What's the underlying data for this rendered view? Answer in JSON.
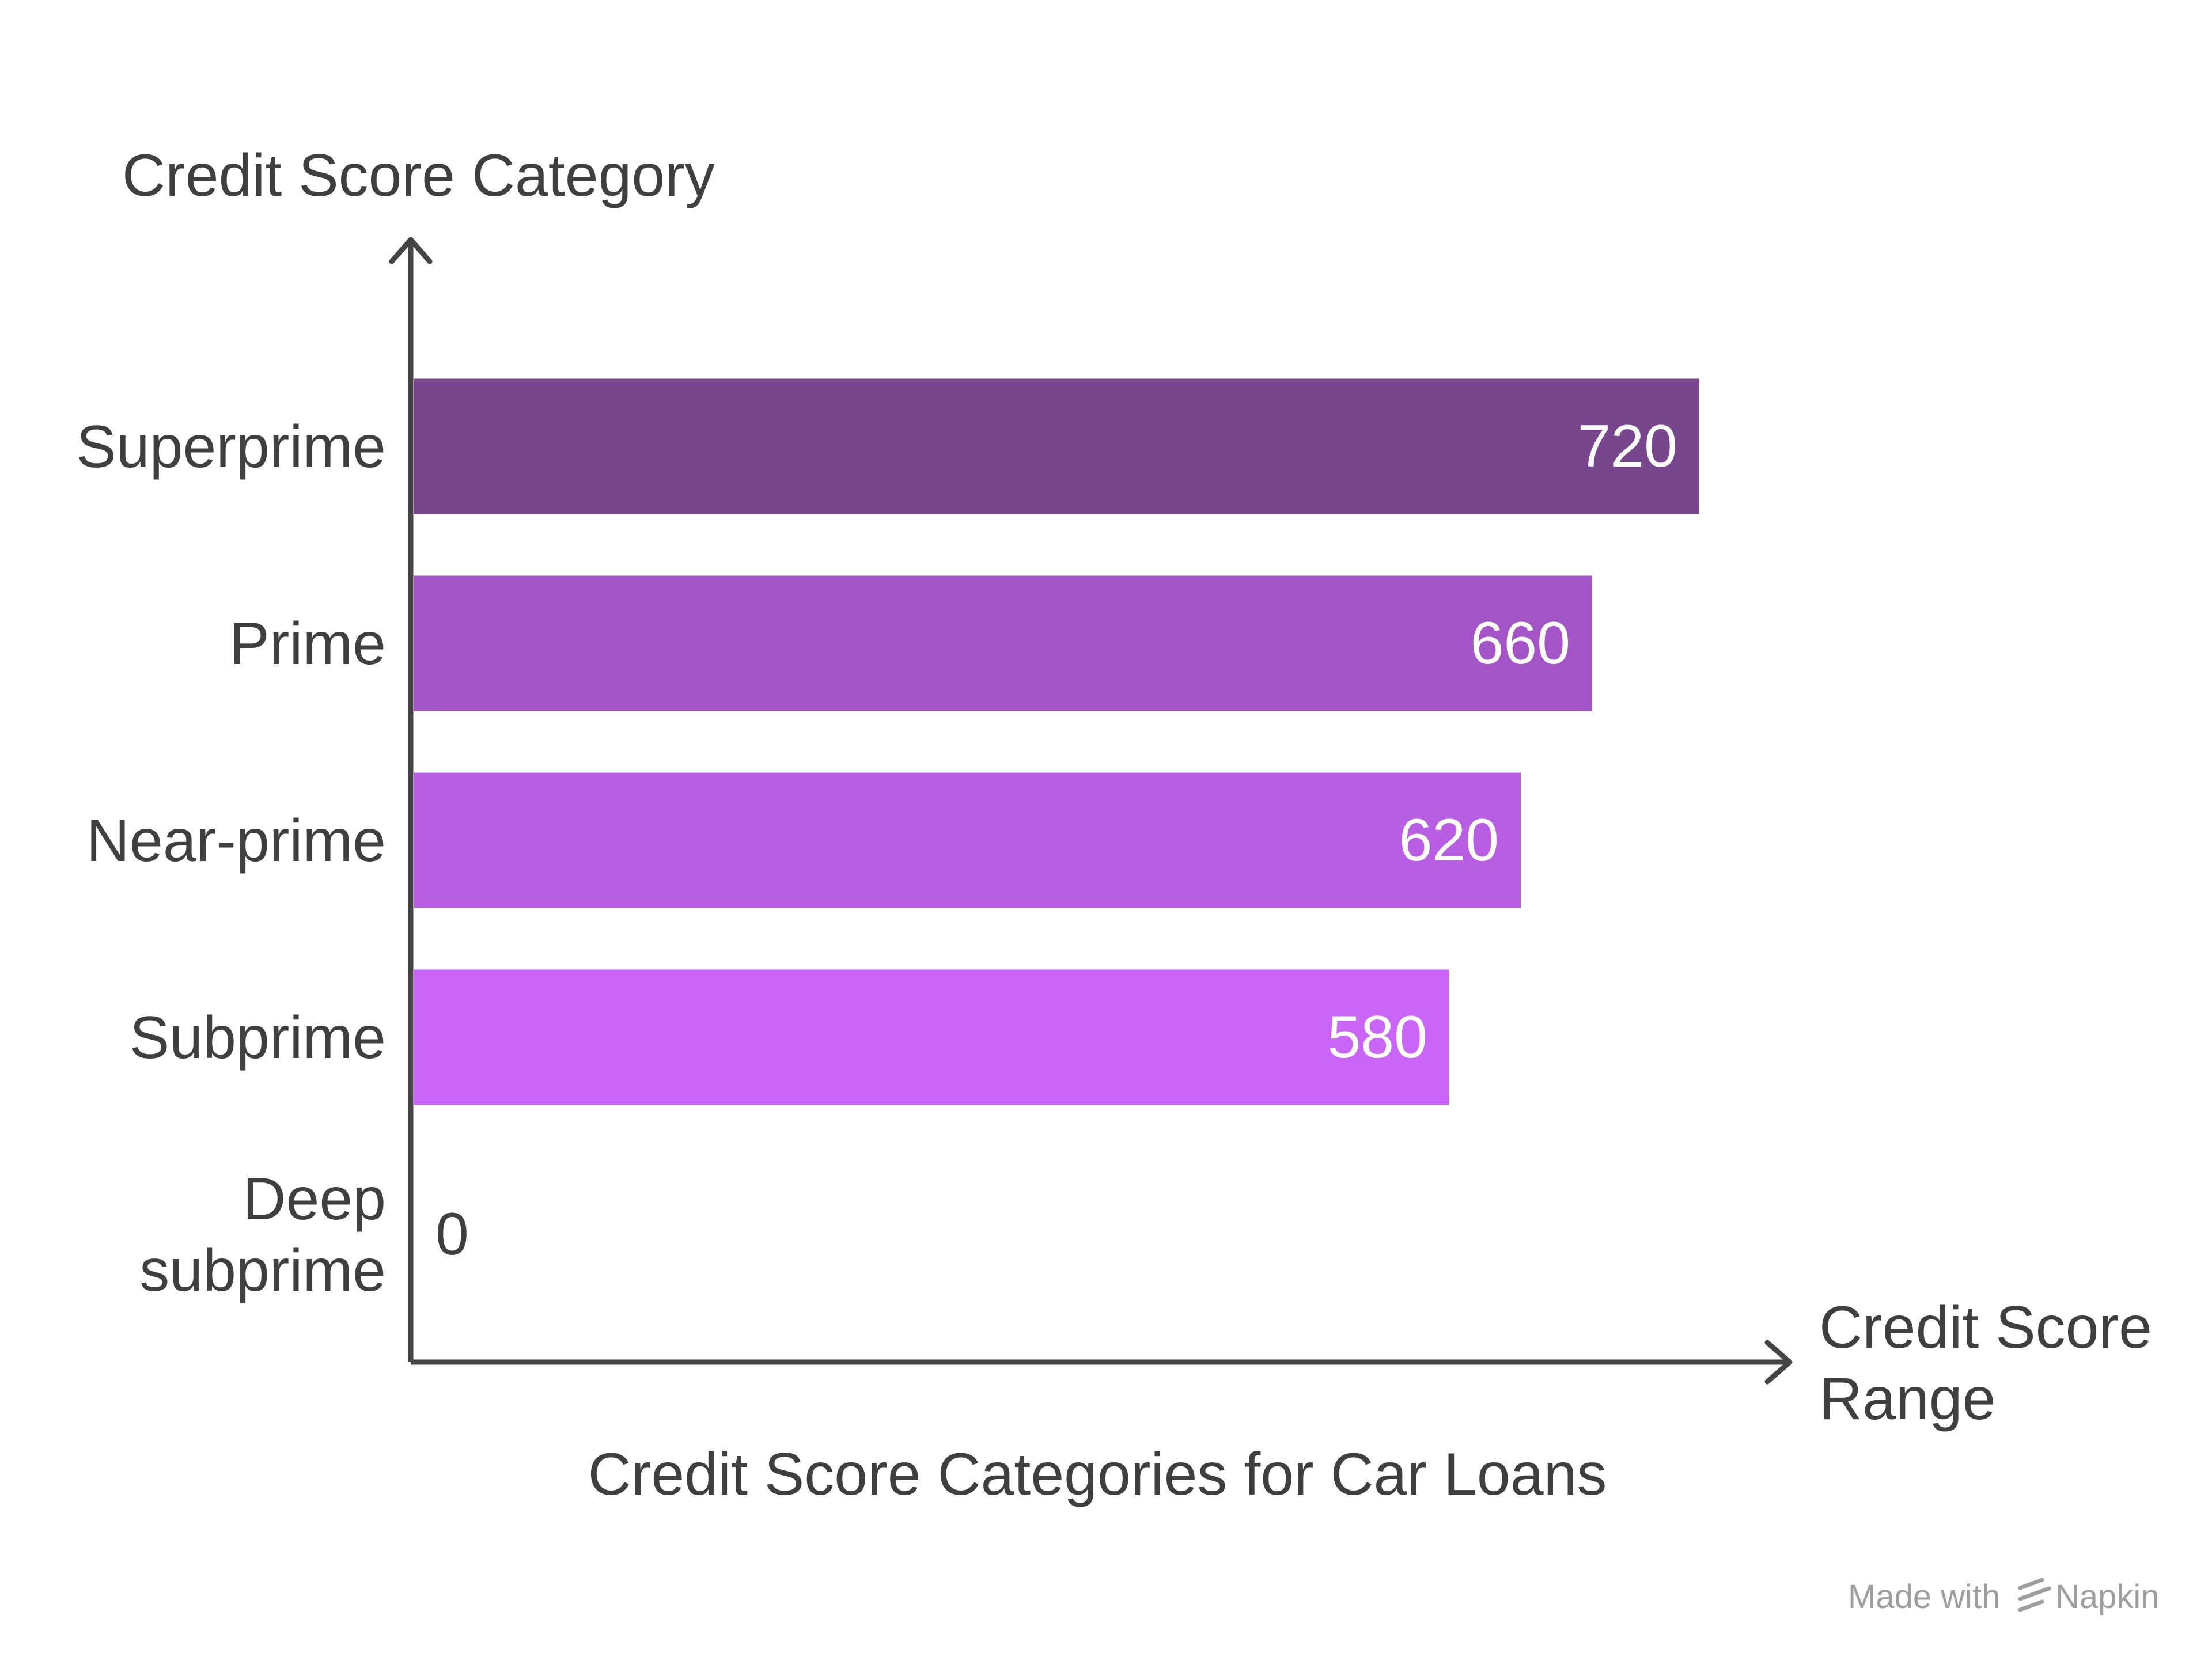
{
  "chart_data": {
    "type": "bar",
    "orientation": "horizontal",
    "title": "Credit Score Categories for Car Loans",
    "ylabel": "Credit Score Category",
    "xlabel_lines": [
      "Credit Score",
      "Range"
    ],
    "categories": [
      {
        "lines": [
          "Superprime"
        ]
      },
      {
        "lines": [
          "Prime"
        ]
      },
      {
        "lines": [
          "Near-prime"
        ]
      },
      {
        "lines": [
          "Subprime"
        ]
      },
      {
        "lines": [
          "Deep",
          "subprime"
        ]
      }
    ],
    "values": [
      720,
      660,
      620,
      580,
      0
    ],
    "value_labels": [
      "720",
      "660",
      "620",
      "580",
      "0"
    ],
    "colors": [
      "#78468c",
      "#a355c8",
      "#b85ee3",
      "#c966f7",
      "#d79bff"
    ],
    "xlim": [
      0,
      720
    ],
    "grid": false,
    "legend": "none"
  },
  "watermark": {
    "prefix": "Made with",
    "brand": "Napkin",
    "icon": "napkin-logo-icon"
  }
}
